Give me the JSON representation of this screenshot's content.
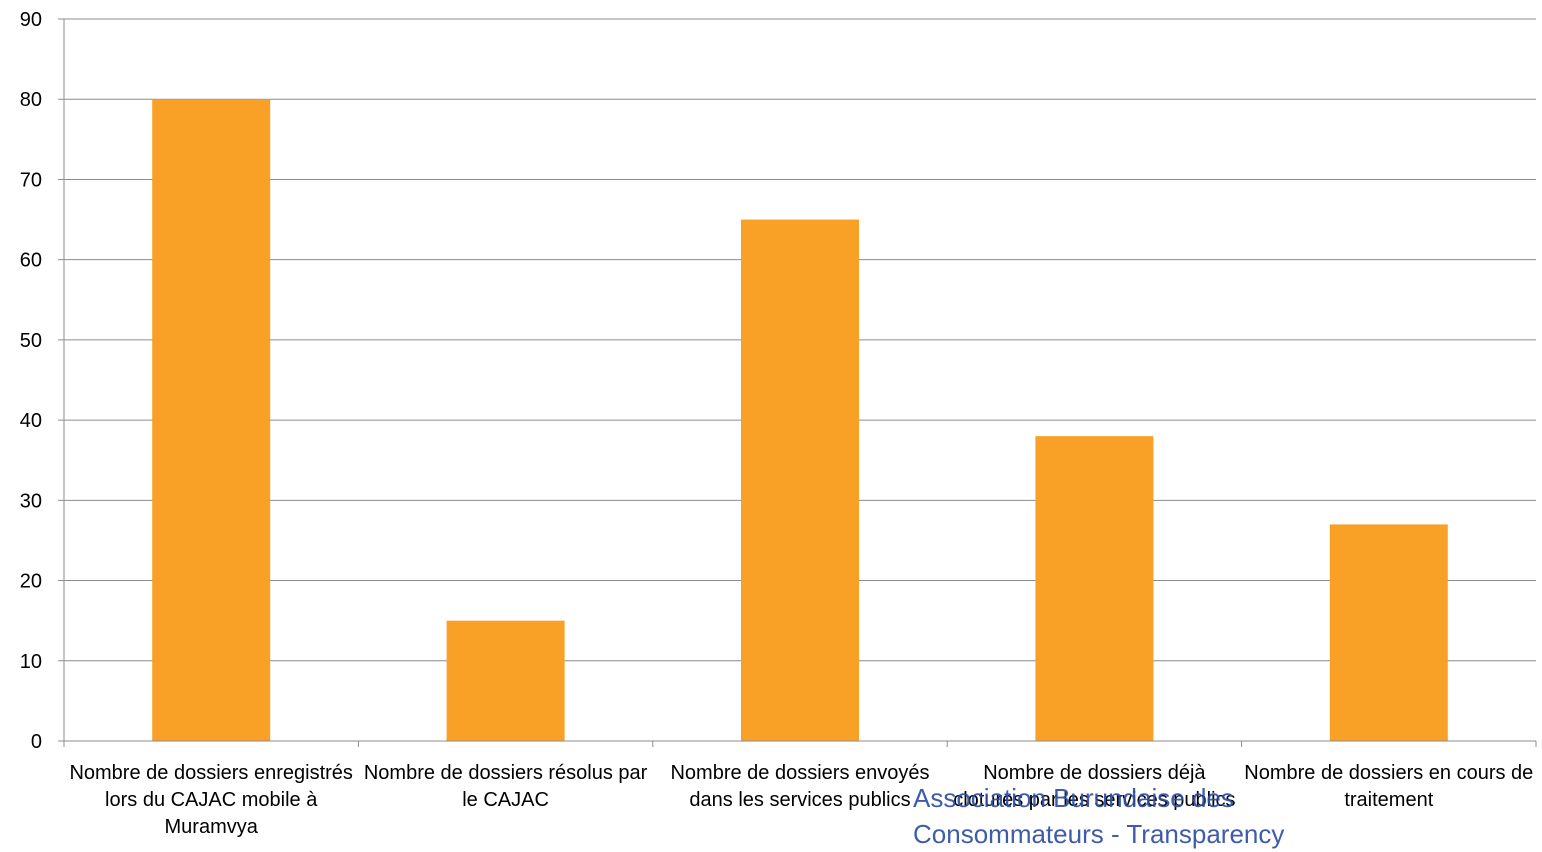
{
  "chart_data": {
    "type": "bar",
    "categories": [
      "Nombre de dossiers enregistrés lors du CAJAC mobile à Muramvya",
      "Nombre de dossiers résolus par le CAJAC",
      "Nombre de dossiers envoyés dans les services publics",
      "Nombre de dossiers déjà clotures par les services publics",
      "Nombre de dossiers en cours de traitement"
    ],
    "values": [
      80,
      15,
      65,
      38,
      27
    ],
    "title": "",
    "xlabel": "",
    "ylabel": "",
    "ylim": [
      0,
      90
    ],
    "yticks": [
      0,
      10,
      20,
      30,
      40,
      50,
      60,
      70,
      80,
      90
    ],
    "grid": true,
    "legend": "none",
    "bar_color": "#f9a127"
  },
  "watermark": {
    "line1": "Association Burundaise des",
    "line2": "Consommateurs - Transparency"
  }
}
